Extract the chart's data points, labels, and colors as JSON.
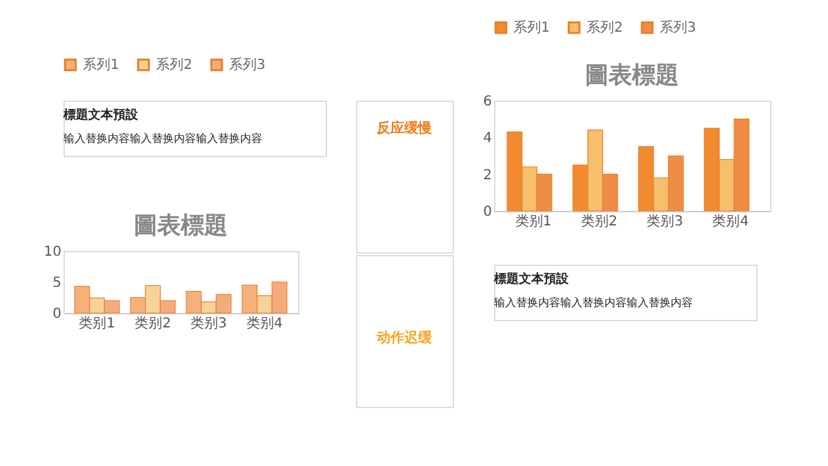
{
  "chart_data": [
    {
      "type": "bar",
      "title": "圖表標題",
      "categories": [
        "类别1",
        "类别2",
        "类别3",
        "类别4"
      ],
      "series": [
        {
          "name": "系列1",
          "color": "#f6b07a",
          "values": [
            4.3,
            2.5,
            3.5,
            4.5
          ]
        },
        {
          "name": "系列2",
          "color": "#f9d29a",
          "values": [
            2.4,
            4.4,
            1.8,
            2.8
          ]
        },
        {
          "name": "系列3",
          "color": "#f4ab80",
          "values": [
            2,
            2,
            3,
            5
          ]
        }
      ],
      "ylim": [
        0,
        10
      ],
      "yticks": [
        0,
        5,
        10
      ],
      "grid": false,
      "legend": "top",
      "annotations": [
        "標題文本預設",
        "输入替换内容输入替换内容输入替换内容",
        "动作迟缓"
      ]
    },
    {
      "type": "bar",
      "title": "圖表標題",
      "categories": [
        "类别1",
        "类别2",
        "类别3",
        "类别4"
      ],
      "series": [
        {
          "name": "系列1",
          "color": "#f28b30",
          "values": [
            4.3,
            2.5,
            3.5,
            4.5
          ]
        },
        {
          "name": "系列2",
          "color": "#f7be6c",
          "values": [
            2.4,
            4.4,
            1.8,
            2.8
          ]
        },
        {
          "name": "系列3",
          "color": "#ef8c45",
          "values": [
            2,
            2,
            3,
            5
          ]
        }
      ],
      "ylim": [
        0,
        6
      ],
      "yticks": [
        0,
        2,
        4,
        6
      ],
      "grid": false,
      "legend": "top",
      "annotations": [
        "標題文本預設",
        "输入替换内容输入替换内容输入替换内容",
        "反应缓慢"
      ]
    }
  ]
}
